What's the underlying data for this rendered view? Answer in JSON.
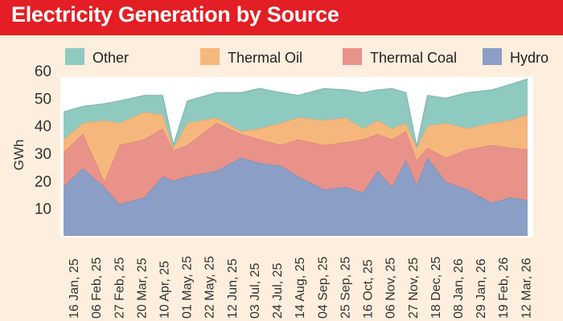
{
  "chart_data": {
    "type": "area",
    "stacked": true,
    "title": "Electricity Generation by Source",
    "ylabel": "GWh",
    "xlabel": "",
    "ylim": [
      0,
      60
    ],
    "yticks": [
      10,
      20,
      30,
      40,
      50,
      60
    ],
    "grid": false,
    "legend_position": "top",
    "xtick_labels": [
      "16 Jan, 25",
      "06 Feb, 25",
      "27 Feb, 25",
      "20 Mar, 25",
      "10 Apr, 25",
      "01 May, 25",
      "22 May, 25",
      "12 Jun, 25",
      "03 Jul, 25",
      "24 Jul, 25",
      "14 Aug, 25",
      "04 Sep, 25",
      "25 Sep, 25",
      "16 Oct, 25",
      "06 Nov, 25",
      "27 Nov, 25",
      "18 Dec, 25",
      "08 Jan, 26",
      "29 Jan, 26",
      "19 Feb, 26",
      "12 Mar, 26"
    ],
    "xtick_dates": [
      "2025-01-16",
      "2025-02-06",
      "2025-02-27",
      "2025-03-20",
      "2025-04-10",
      "2025-05-01",
      "2025-05-22",
      "2025-06-12",
      "2025-07-03",
      "2025-07-24",
      "2025-08-14",
      "2025-09-04",
      "2025-09-25",
      "2025-10-16",
      "2025-11-06",
      "2025-11-27",
      "2025-12-18",
      "2026-01-08",
      "2026-01-29",
      "2026-02-19",
      "2026-03-12"
    ],
    "x": [
      "2025-01-07",
      "2025-01-25",
      "2025-02-14",
      "2025-02-28",
      "2025-03-23",
      "2025-04-09",
      "2025-04-19",
      "2025-05-02",
      "2025-05-29",
      "2025-06-21",
      "2025-07-08",
      "2025-07-28",
      "2025-08-13",
      "2025-09-06",
      "2025-09-26",
      "2025-10-12",
      "2025-10-26",
      "2025-11-08",
      "2025-11-21",
      "2025-12-01",
      "2025-12-11",
      "2025-12-28",
      "2026-01-17",
      "2026-02-09",
      "2026-02-26",
      "2026-03-14"
    ],
    "series": [
      {
        "name": "Hydro",
        "color": "#8b9ec5",
        "values": [
          18,
          24.5,
          17.8,
          11.5,
          14,
          21.6,
          20,
          21.6,
          23.6,
          28.4,
          26.5,
          25.5,
          21.6,
          16.8,
          17.8,
          15.8,
          23.6,
          17.8,
          27.5,
          18.7,
          28.4,
          19.7,
          16.8,
          12,
          14,
          13
        ]
      },
      {
        "name": "Thermal Coal",
        "color": "#e9928a",
        "values": [
          12.4,
          12.5,
          1.9,
          21.5,
          21,
          17.4,
          11,
          11.4,
          17.4,
          8.6,
          8.5,
          7.5,
          13.4,
          16.2,
          16.2,
          19.2,
          13.4,
          17.2,
          10.5,
          8.8,
          3.6,
          8.7,
          14.6,
          21,
          18,
          18.4
        ]
      },
      {
        "name": "Thermal Oil",
        "color": "#f6b77c",
        "values": [
          4.6,
          4,
          22.3,
          8,
          10,
          5,
          1,
          8,
          2,
          1,
          4,
          8,
          8,
          9,
          9,
          4,
          5,
          4,
          3,
          4.5,
          8,
          12.6,
          7.6,
          8,
          10,
          12.6
        ]
      },
      {
        "name": "Other",
        "color": "#8fcac1",
        "values": [
          10,
          6,
          6,
          8,
          6,
          7,
          1,
          8,
          9,
          14,
          14.5,
          11,
          8,
          11.5,
          10,
          13,
          11,
          14.5,
          11,
          0.5,
          11,
          9,
          13,
          12,
          13,
          13
        ]
      }
    ],
    "legend": [
      "Other",
      "Thermal Oil",
      "Thermal Coal",
      "Hydro"
    ]
  }
}
